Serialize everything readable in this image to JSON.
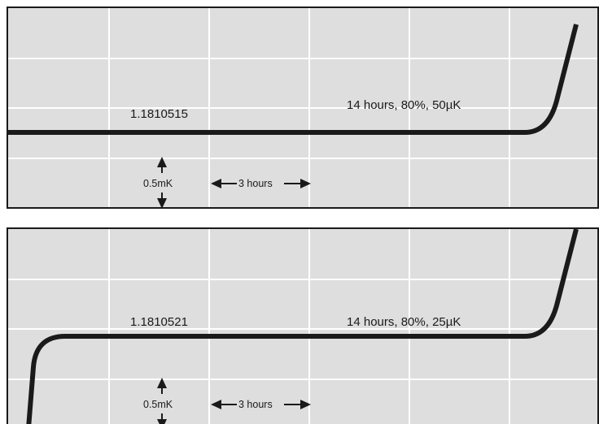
{
  "panels": [
    {
      "sample_label": "1.1810515",
      "condition_label": "14 hours, 80%, 50µK"
    },
    {
      "sample_label": "1.1810521",
      "condition_label": "14 hours, 80%, 25µK"
    }
  ],
  "scale_bar": {
    "vertical_label": "0.5mK",
    "horizontal_label": "3 hours"
  },
  "colors": {
    "background": "#dedede",
    "grid": "#ffffff",
    "trace": "#1a1a1a"
  },
  "chart_data": [
    {
      "type": "line",
      "title": "",
      "grid": true,
      "series": [
        {
          "values_description_free": true,
          "shape": "flat plateau then sharp rise at right end",
          "points": [
            [
              0,
              0
            ],
            [
              31,
              0
            ],
            [
              33,
              0.6
            ],
            [
              34.5,
              2.6
            ]
          ]
        }
      ],
      "annotations": [
        "1.1810515",
        "14 hours, 80%, 50µK"
      ],
      "scale": {
        "y_division": "0.5mK",
        "x_division": "3 hours"
      }
    },
    {
      "type": "line",
      "title": "",
      "grid": true,
      "series": [
        {
          "shape": "sharp rise at left, flat plateau, sharp rise at right",
          "points": [
            [
              0.8,
              -2.2
            ],
            [
              1.2,
              -0.4
            ],
            [
              2.5,
              0
            ],
            [
              31,
              0
            ],
            [
              33,
              0.6
            ],
            [
              34.5,
              2.6
            ]
          ]
        }
      ],
      "annotations": [
        "1.1810521",
        "14 hours, 80%, 25µK"
      ],
      "scale": {
        "y_division": "0.5mK",
        "x_division": "3 hours"
      }
    }
  ]
}
